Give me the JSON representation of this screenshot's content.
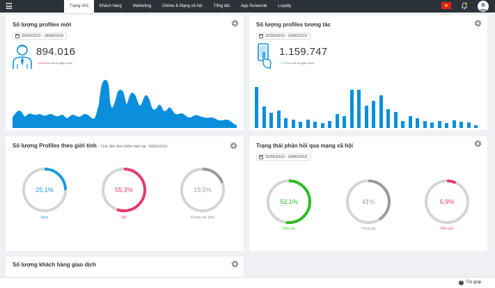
{
  "nav": {
    "items": [
      {
        "label": "Trang chủ",
        "active": true
      },
      {
        "label": "Khách hàng",
        "active": false
      },
      {
        "label": "Marketing",
        "active": false
      },
      {
        "label": "Online & Mạng xã hội",
        "active": false
      },
      {
        "label": "Tổng đài",
        "active": false
      },
      {
        "label": "App Sunworld",
        "active": false
      },
      {
        "label": "Loyalty",
        "active": false
      }
    ]
  },
  "new_profiles": {
    "title": "Số lượng profiles mới",
    "date_range": "20/05/2019 - 18/06/2019",
    "value": "894.016",
    "delta": "11,6%",
    "delta_direction": "down",
    "delta_note": "so với số ngày trước",
    "icon": "person-icon",
    "chart_color": "#0b8fdc"
  },
  "interacting_profiles": {
    "title": "Số lượng profiles tương tác",
    "date_range": "20/05/2019 - 18/06/2019",
    "value": "1.159.747",
    "delta": "1,7%",
    "delta_direction": "up",
    "delta_note": "so với số ngày trước",
    "icon": "phone-tap-icon",
    "chart_color": "#0b8fdc"
  },
  "gender": {
    "title": "Số lượng Profiles theo giới tính",
    "note": "- Tính đến thời điểm hiện tại: 18/06/2019",
    "items": [
      {
        "value": "25,1%",
        "label": "Nam",
        "fraction": 0.251,
        "color": "#1a9be0"
      },
      {
        "value": "55,3%",
        "label": "Nữ",
        "fraction": 0.553,
        "color": "#e8386a"
      },
      {
        "value": "19,5%",
        "label": "Không xác định",
        "fraction": 0.195,
        "color": "#9a9a9a"
      }
    ]
  },
  "social_feedback": {
    "title": "Trạng thái phản hồi qua mạng xã hội",
    "date_range": "20/05/2019 - 18/06/2019",
    "items": [
      {
        "value": "52,1%",
        "label": "Tích cực",
        "fraction": 0.521,
        "color": "#2bbd20"
      },
      {
        "value": "41%",
        "label": "Trung lập",
        "fraction": 0.41,
        "color": "#9a9a9a"
      },
      {
        "value": "6,9%",
        "label": "Tiêu cực",
        "fraction": 0.069,
        "color": "#e8386a"
      }
    ]
  },
  "transactions": {
    "title": "Số lượng khách hàng giao dịch"
  },
  "help": {
    "label": "Trợ giúp"
  }
}
